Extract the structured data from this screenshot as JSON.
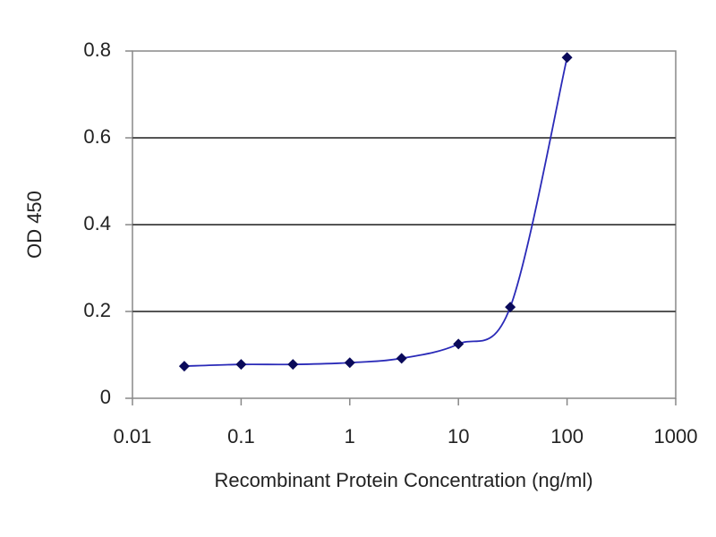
{
  "chart_data": {
    "type": "line",
    "x_label": "Recombinant Protein Concentration (ng/ml)",
    "y_label": "OD 450",
    "x": [
      0.03,
      0.1,
      0.3,
      1,
      3,
      10,
      30,
      100
    ],
    "series": [
      {
        "color": "#2a2ab8",
        "marker_color": "#0a0a5a",
        "values": [
          0.074,
          0.078,
          0.078,
          0.082,
          0.092,
          0.125,
          0.21,
          0.785
        ]
      }
    ],
    "xscale": "log",
    "xlim": [
      0.01,
      1000
    ],
    "xticks": [
      0.01,
      0.1,
      1,
      10,
      100,
      1000
    ],
    "ylim": [
      0,
      0.8
    ],
    "yticks": [
      0,
      0.2,
      0.4,
      0.6,
      0.8
    ],
    "grid": true
  }
}
